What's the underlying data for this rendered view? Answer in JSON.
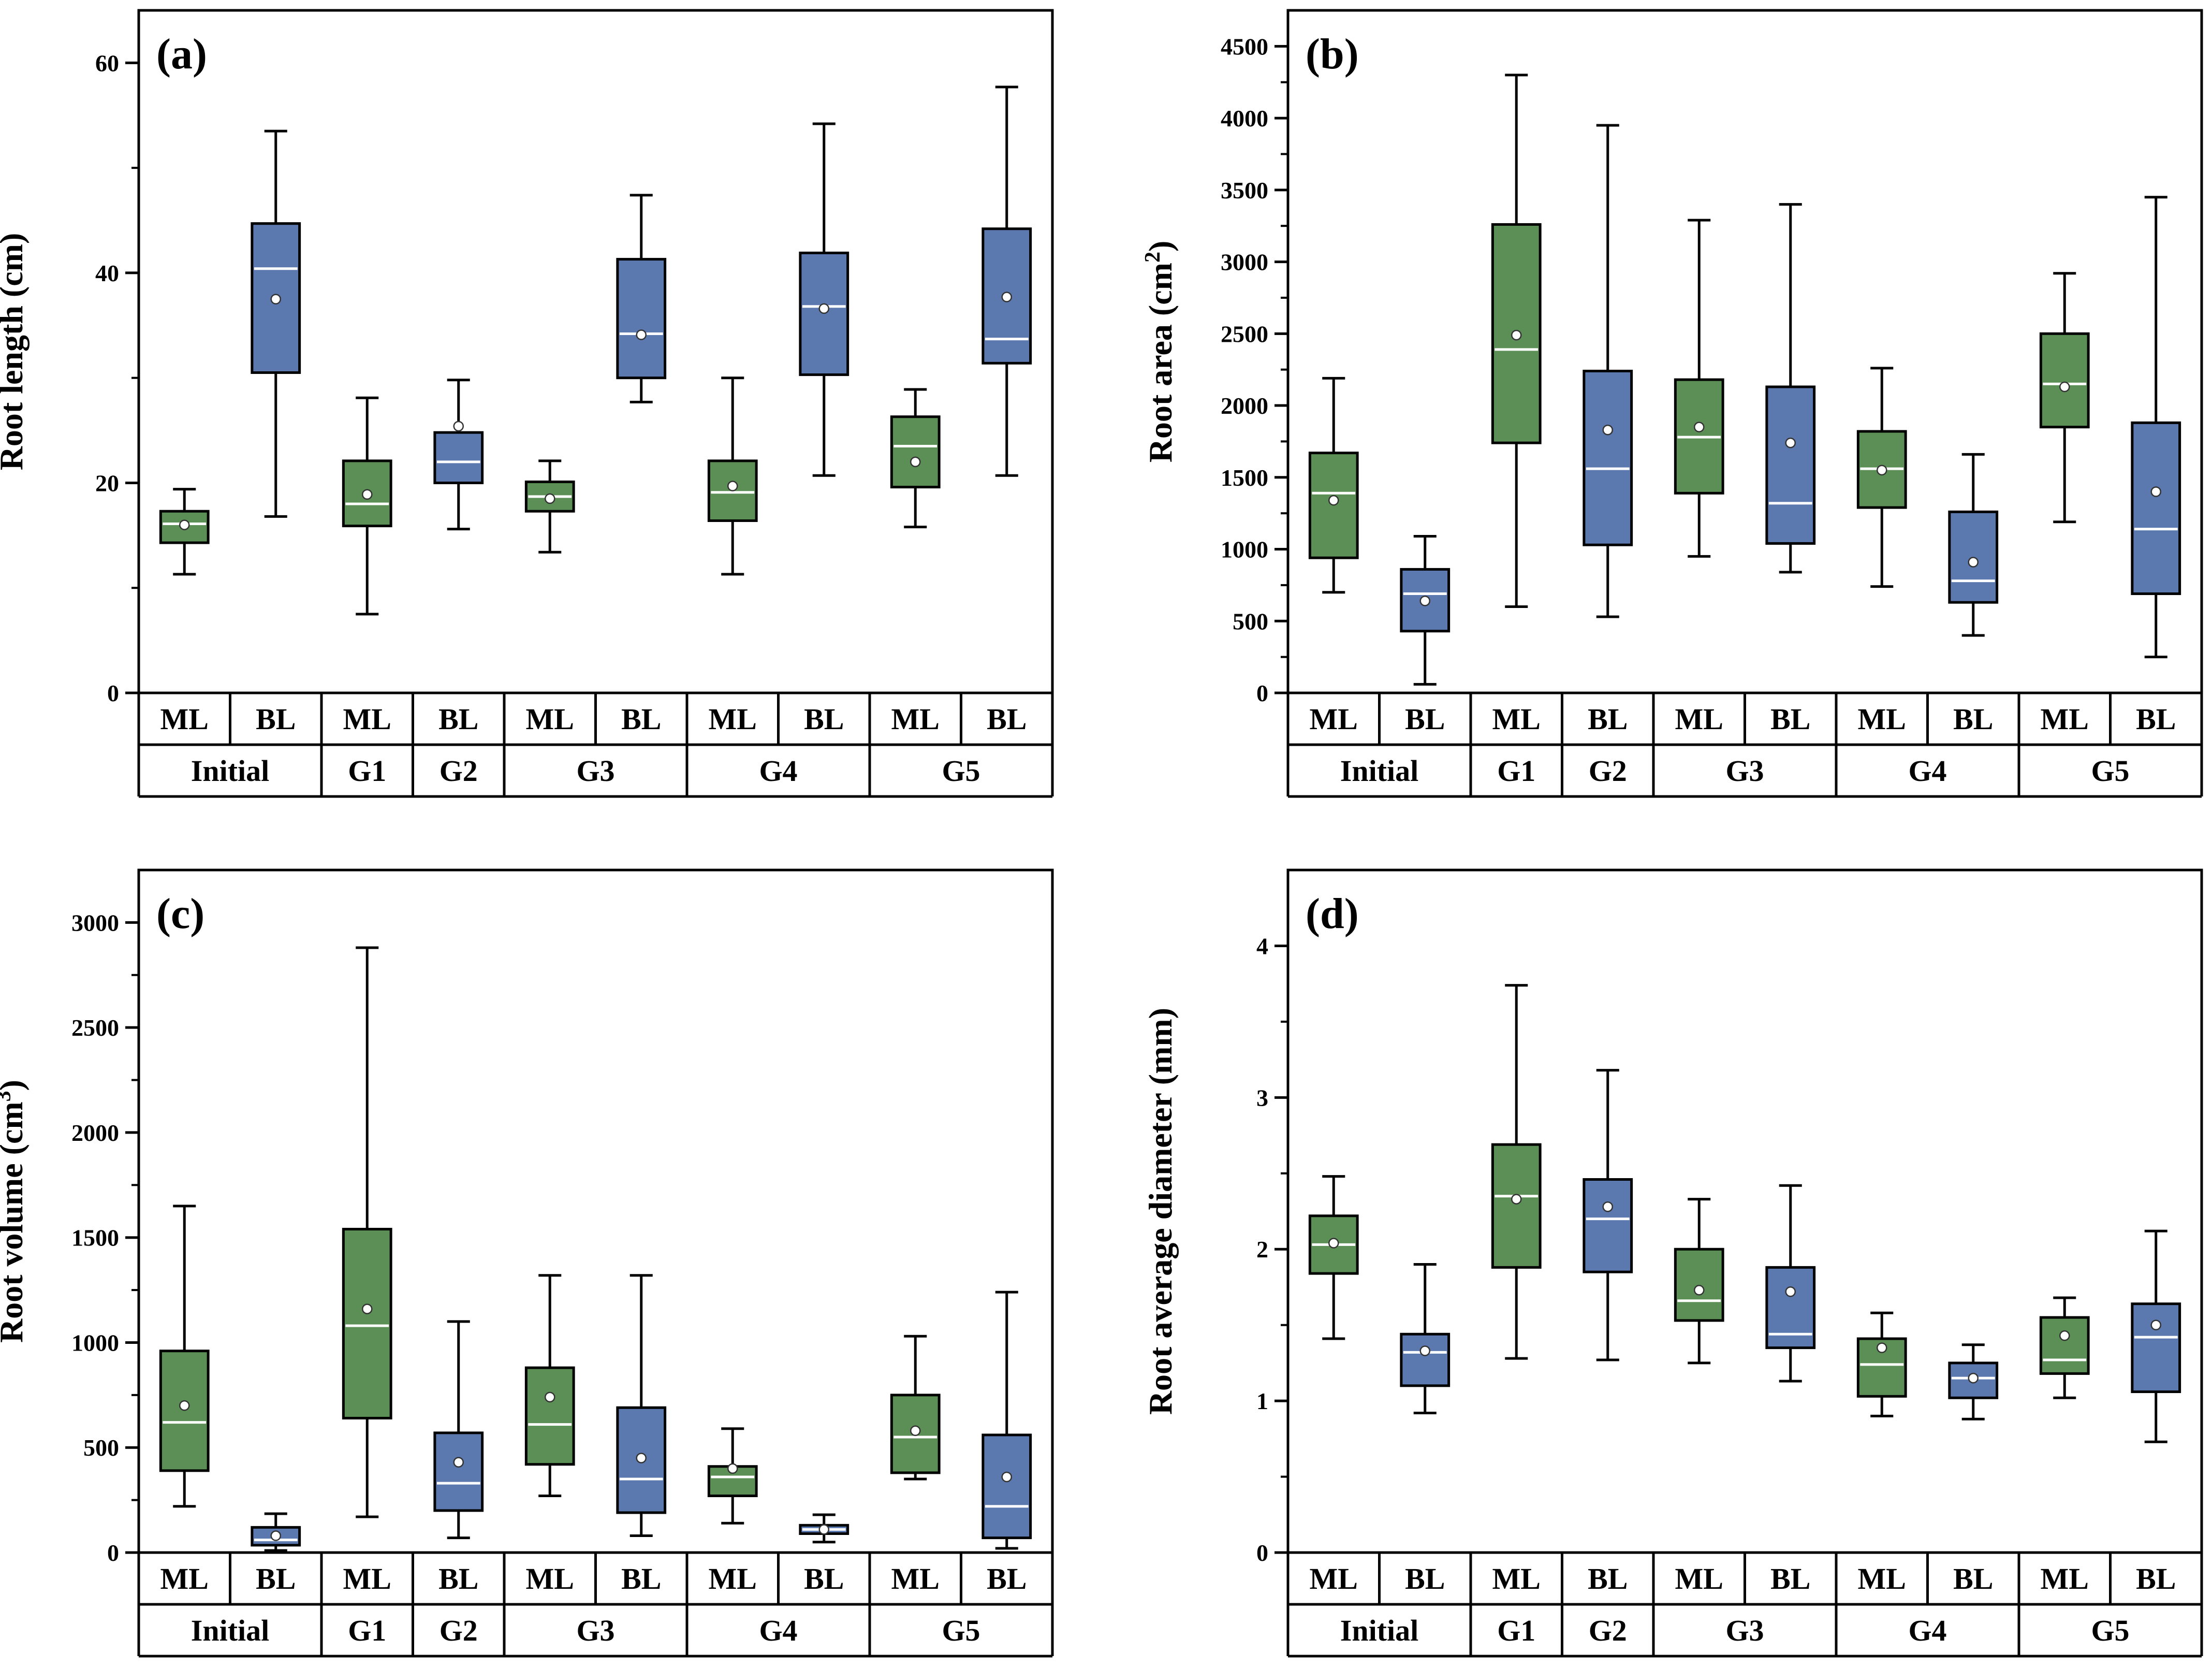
{
  "colors": {
    "ML": "#5b8f55",
    "BL": "#5b79ae",
    "median": "#ffffff",
    "frame": "#000000"
  },
  "chart_data": [
    {
      "panel": "(a)",
      "type": "box",
      "ylabel": "Root length (cm)",
      "ylabel_sup": "",
      "ylabel_tail": "",
      "ylim": [
        0,
        65
      ],
      "yticks": [
        0,
        20,
        40,
        60
      ],
      "ytick_labels": [
        "0",
        "20",
        "40",
        "60"
      ],
      "categories": [
        "ML",
        "BL",
        "ML",
        "BL",
        "ML",
        "BL",
        "ML",
        "BL",
        "ML",
        "BL"
      ],
      "groups": [
        {
          "label": "Initial",
          "span": 2
        },
        {
          "label": "G1",
          "span": 1
        },
        {
          "label": "G2",
          "span": 1
        },
        {
          "label": "G3",
          "span": 2
        },
        {
          "label": "G4",
          "span": 2
        },
        {
          "label": "G5",
          "span": 2
        }
      ],
      "boxes": [
        {
          "min": 11.3,
          "q1": 14.3,
          "median": 16.1,
          "q3": 17.3,
          "max": 19.4,
          "mean": 16.0
        },
        {
          "min": 16.8,
          "q1": 30.5,
          "median": 40.4,
          "q3": 44.7,
          "max": 53.5,
          "mean": 37.5
        },
        {
          "min": 7.5,
          "q1": 15.9,
          "median": 18.0,
          "q3": 22.1,
          "max": 28.1,
          "mean": 18.9
        },
        {
          "min": 15.6,
          "q1": 20.0,
          "median": 22.0,
          "q3": 24.8,
          "max": 29.8,
          "mean": 25.4
        },
        {
          "min": 13.4,
          "q1": 17.3,
          "median": 18.7,
          "q3": 20.1,
          "max": 22.1,
          "mean": 18.5
        },
        {
          "min": 27.7,
          "q1": 30.0,
          "median": 34.2,
          "q3": 41.3,
          "max": 47.4,
          "mean": 34.1
        },
        {
          "min": 11.3,
          "q1": 16.4,
          "median": 19.1,
          "q3": 22.1,
          "max": 30.0,
          "mean": 19.7
        },
        {
          "min": 20.7,
          "q1": 30.3,
          "median": 36.8,
          "q3": 41.9,
          "max": 54.2,
          "mean": 36.6
        },
        {
          "min": 15.8,
          "q1": 19.6,
          "median": 23.5,
          "q3": 26.3,
          "max": 28.9,
          "mean": 22.0
        },
        {
          "min": 20.7,
          "q1": 31.4,
          "median": 33.7,
          "q3": 44.2,
          "max": 57.7,
          "mean": 37.7
        }
      ]
    },
    {
      "panel": "(b)",
      "type": "box",
      "ylabel": "Root area (cm",
      "ylabel_sup": "2",
      "ylabel_tail": ")",
      "ylim": [
        0,
        4750
      ],
      "yticks": [
        0,
        500,
        1000,
        1500,
        2000,
        2500,
        3000,
        3500,
        4000,
        4500
      ],
      "ytick_labels": [
        "0",
        "500",
        "1000",
        "1500",
        "2000",
        "2500",
        "3000",
        "3500",
        "4000",
        "4500"
      ],
      "categories": [
        "ML",
        "BL",
        "ML",
        "BL",
        "ML",
        "BL",
        "ML",
        "BL",
        "ML",
        "BL"
      ],
      "groups": [
        {
          "label": "Initial",
          "span": 2
        },
        {
          "label": "G1",
          "span": 1
        },
        {
          "label": "G2",
          "span": 1
        },
        {
          "label": "G3",
          "span": 2
        },
        {
          "label": "G4",
          "span": 2
        },
        {
          "label": "G5",
          "span": 2
        }
      ],
      "boxes": [
        {
          "min": 700,
          "q1": 940,
          "median": 1390,
          "q3": 1670,
          "max": 2190,
          "mean": 1340
        },
        {
          "min": 60,
          "q1": 430,
          "median": 690,
          "q3": 860,
          "max": 1090,
          "mean": 640
        },
        {
          "min": 600,
          "q1": 1740,
          "median": 2390,
          "q3": 3260,
          "max": 4300,
          "mean": 2490
        },
        {
          "min": 530,
          "q1": 1030,
          "median": 1560,
          "q3": 2240,
          "max": 3950,
          "mean": 1830
        },
        {
          "min": 950,
          "q1": 1390,
          "median": 1780,
          "q3": 2180,
          "max": 3290,
          "mean": 1850
        },
        {
          "min": 840,
          "q1": 1040,
          "median": 1320,
          "q3": 2130,
          "max": 3400,
          "mean": 1740
        },
        {
          "min": 740,
          "q1": 1290,
          "median": 1560,
          "q3": 1820,
          "max": 2260,
          "mean": 1550
        },
        {
          "min": 400,
          "q1": 630,
          "median": 780,
          "q3": 1260,
          "max": 1660,
          "mean": 910
        },
        {
          "min": 1190,
          "q1": 1850,
          "median": 2150,
          "q3": 2500,
          "max": 2920,
          "mean": 2130
        },
        {
          "min": 250,
          "q1": 690,
          "median": 1140,
          "q3": 1880,
          "max": 3450,
          "mean": 1400
        }
      ]
    },
    {
      "panel": "(c)",
      "type": "box",
      "ylabel": "Root volume (cm",
      "ylabel_sup": "3",
      "ylabel_tail": ")",
      "ylim": [
        0,
        3250
      ],
      "yticks": [
        0,
        500,
        1000,
        1500,
        2000,
        2500,
        3000
      ],
      "ytick_labels": [
        "0",
        "500",
        "1000",
        "1500",
        "2000",
        "2500",
        "3000"
      ],
      "categories": [
        "ML",
        "BL",
        "ML",
        "BL",
        "ML",
        "BL",
        "ML",
        "BL",
        "ML",
        "BL"
      ],
      "groups": [
        {
          "label": "Initial",
          "span": 2
        },
        {
          "label": "G1",
          "span": 1
        },
        {
          "label": "G2",
          "span": 1
        },
        {
          "label": "G3",
          "span": 2
        },
        {
          "label": "G4",
          "span": 2
        },
        {
          "label": "G5",
          "span": 2
        }
      ],
      "boxes": [
        {
          "min": 220,
          "q1": 390,
          "median": 620,
          "q3": 960,
          "max": 1650,
          "mean": 700
        },
        {
          "min": 10,
          "q1": 35,
          "median": 60,
          "q3": 120,
          "max": 185,
          "mean": 80
        },
        {
          "min": 170,
          "q1": 640,
          "median": 1080,
          "q3": 1540,
          "max": 2880,
          "mean": 1160
        },
        {
          "min": 70,
          "q1": 200,
          "median": 330,
          "q3": 570,
          "max": 1100,
          "mean": 430
        },
        {
          "min": 270,
          "q1": 420,
          "median": 610,
          "q3": 880,
          "max": 1320,
          "mean": 740
        },
        {
          "min": 80,
          "q1": 190,
          "median": 350,
          "q3": 690,
          "max": 1320,
          "mean": 450
        },
        {
          "min": 140,
          "q1": 270,
          "median": 360,
          "q3": 410,
          "max": 590,
          "mean": 400
        },
        {
          "min": 50,
          "q1": 90,
          "median": 110,
          "q3": 130,
          "max": 180,
          "mean": 110
        },
        {
          "min": 350,
          "q1": 380,
          "median": 550,
          "q3": 750,
          "max": 1030,
          "mean": 580
        },
        {
          "min": 20,
          "q1": 70,
          "median": 220,
          "q3": 560,
          "max": 1240,
          "mean": 360
        }
      ]
    },
    {
      "panel": "(d)",
      "type": "box",
      "ylabel": "Root average diameter (mm)",
      "ylabel_sup": "",
      "ylabel_tail": "",
      "ylim": [
        0,
        4.5
      ],
      "yticks": [
        0,
        1,
        2,
        3,
        4
      ],
      "ytick_labels": [
        "0",
        "1",
        "2",
        "3",
        "4"
      ],
      "categories": [
        "ML",
        "BL",
        "ML",
        "BL",
        "ML",
        "BL",
        "ML",
        "BL",
        "ML",
        "BL"
      ],
      "groups": [
        {
          "label": "Initial",
          "span": 2
        },
        {
          "label": "G1",
          "span": 1
        },
        {
          "label": "G2",
          "span": 1
        },
        {
          "label": "G3",
          "span": 2
        },
        {
          "label": "G4",
          "span": 2
        },
        {
          "label": "G5",
          "span": 2
        }
      ],
      "boxes": [
        {
          "min": 1.41,
          "q1": 1.84,
          "median": 2.03,
          "q3": 2.22,
          "max": 2.48,
          "mean": 2.04
        },
        {
          "min": 0.92,
          "q1": 1.1,
          "median": 1.32,
          "q3": 1.44,
          "max": 1.9,
          "mean": 1.33
        },
        {
          "min": 1.28,
          "q1": 1.88,
          "median": 2.35,
          "q3": 2.69,
          "max": 3.74,
          "mean": 2.33
        },
        {
          "min": 1.27,
          "q1": 1.85,
          "median": 2.2,
          "q3": 2.46,
          "max": 3.18,
          "mean": 2.28
        },
        {
          "min": 1.25,
          "q1": 1.53,
          "median": 1.66,
          "q3": 2.0,
          "max": 2.33,
          "mean": 1.73
        },
        {
          "min": 1.13,
          "q1": 1.35,
          "median": 1.44,
          "q3": 1.88,
          "max": 2.42,
          "mean": 1.72
        },
        {
          "min": 0.9,
          "q1": 1.03,
          "median": 1.24,
          "q3": 1.41,
          "max": 1.58,
          "mean": 1.35
        },
        {
          "min": 0.88,
          "q1": 1.02,
          "median": 1.15,
          "q3": 1.25,
          "max": 1.37,
          "mean": 1.15
        },
        {
          "min": 1.02,
          "q1": 1.18,
          "median": 1.27,
          "q3": 1.55,
          "max": 1.68,
          "mean": 1.43
        },
        {
          "min": 0.73,
          "q1": 1.06,
          "median": 1.42,
          "q3": 1.64,
          "max": 2.12,
          "mean": 1.5
        }
      ]
    }
  ]
}
